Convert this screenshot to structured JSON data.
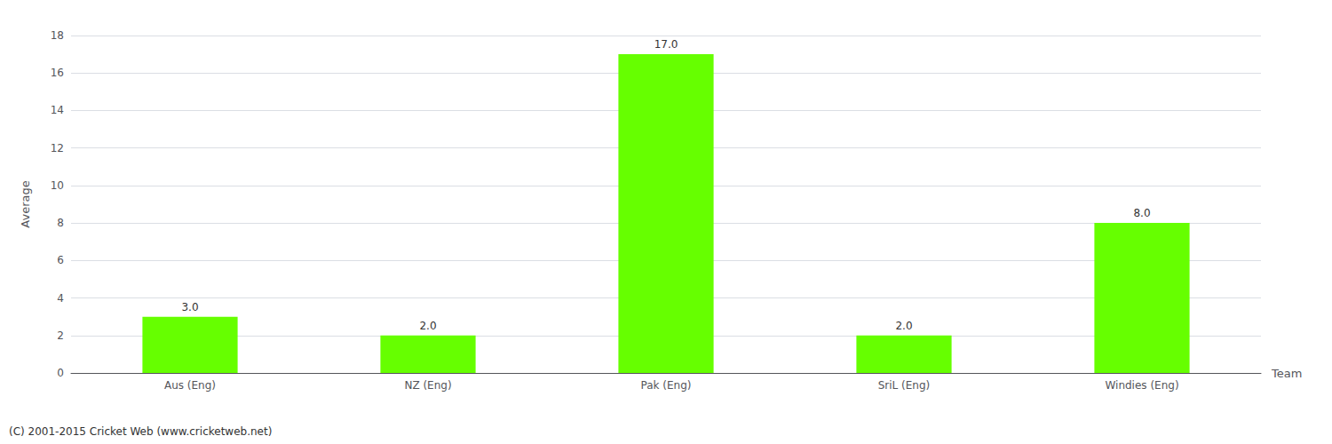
{
  "chart_data": {
    "type": "bar",
    "categories": [
      "Aus (Eng)",
      "NZ (Eng)",
      "Pak (Eng)",
      "SriL (Eng)",
      "Windies (Eng)"
    ],
    "values": [
      3.0,
      2.0,
      17.0,
      2.0,
      8.0
    ],
    "value_labels": [
      "3.0",
      "2.0",
      "17.0",
      "2.0",
      "8.0"
    ],
    "data_labels": true,
    "color": "#66ff00",
    "xlabel": "Team",
    "ylabel": "Average",
    "ylim": [
      0,
      18
    ],
    "yticks": [
      0,
      2,
      4,
      6,
      8,
      10,
      12,
      14,
      16,
      18
    ],
    "grid": true,
    "annotations": [
      "(C) 2001-2015 Cricket Web (www.cricketweb.net)"
    ]
  }
}
